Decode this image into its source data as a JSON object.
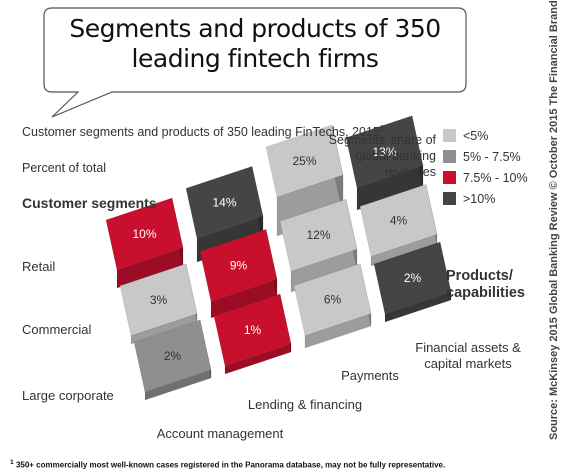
{
  "chart_data": {
    "type": "heatmap",
    "title": "Segments and products of 350 leading fintech firms",
    "subtitle": "Customer segments and products of 350 leading FinTechs, 2015",
    "subtitle_footnote_mark": "1",
    "unit_label": "Percent of total",
    "rows_heading": "Customer segments",
    "columns_heading": "Products/ capabilities",
    "rows": [
      "Retail",
      "Commercial",
      "Large corporate"
    ],
    "columns": [
      "Account management",
      "Lending & financing",
      "Payments",
      "Financial assets & capital markets"
    ],
    "values": [
      [
        10,
        14,
        25,
        13
      ],
      [
        3,
        9,
        12,
        4
      ],
      [
        2,
        1,
        6,
        2
      ]
    ],
    "cell_labels": [
      [
        "10%",
        "14%",
        "25%",
        "13%"
      ],
      [
        "3%",
        "9%",
        "12%",
        "4%"
      ],
      [
        "2%",
        "1%",
        "6%",
        "2%"
      ]
    ],
    "legend": {
      "title": "Segments' share of global banking revenues",
      "items": [
        {
          "label": "<5%",
          "color": "#c8c8c8"
        },
        {
          "label": "5% - 7.5%",
          "color": "#8f8f8f"
        },
        {
          "label": "7.5% - 10%",
          "color": "#c8102e"
        },
        {
          "label": ">10%",
          "color": "#454545"
        }
      ]
    },
    "cell_categories": [
      [
        2,
        3,
        0,
        3
      ],
      [
        0,
        2,
        0,
        0
      ],
      [
        1,
        2,
        0,
        3
      ]
    ],
    "footnote": "350+ commercially most well-known cases registered in the Panorama database, may not be fully representative.",
    "footnote_mark": "1",
    "source": "Source: McKinsey 2015 Global Banking Review © October 2015 The Financial Brand"
  }
}
